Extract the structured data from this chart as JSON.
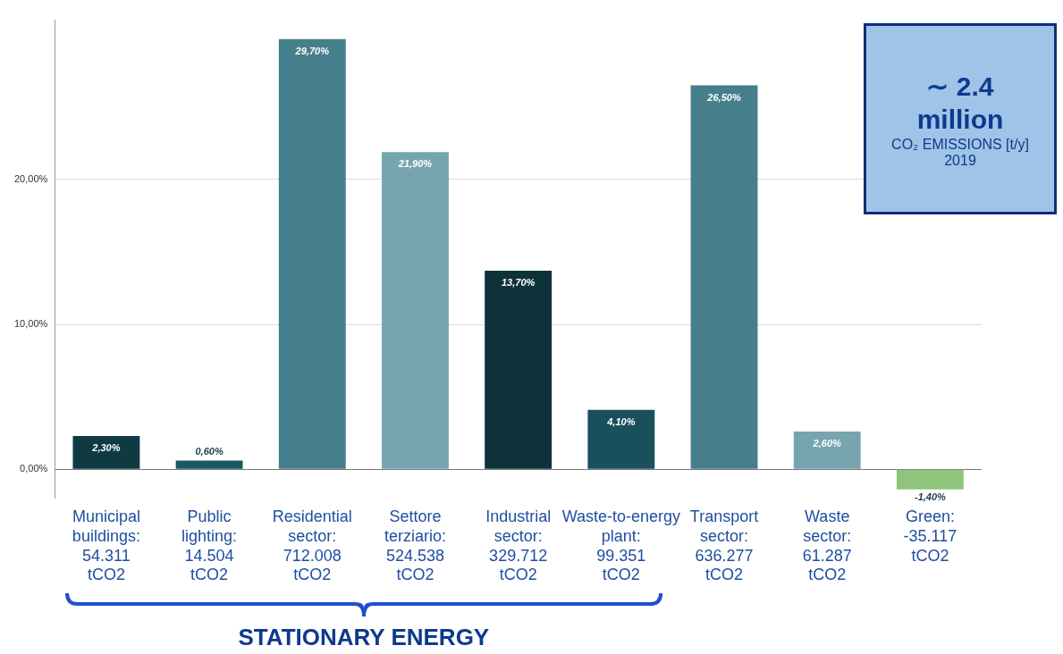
{
  "chart_data": {
    "type": "bar",
    "categories": [
      "Municipal buildings: 54.311 tCO2",
      "Public lighting: 14.504 tCO2",
      "Residential sector: 712.008 tCO2",
      "Settore terziario: 524.538 tCO2",
      "Industrial sector: 329.712 tCO2",
      "Waste-to-energy plant: 99.351 tCO2",
      "Transport sector: 636.277 tCO2",
      "Waste sector: 61.287 tCO2",
      "Green: -35.117 tCO2"
    ],
    "values": [
      2.3,
      0.6,
      29.7,
      21.9,
      13.7,
      4.1,
      26.5,
      2.6,
      -1.4
    ],
    "colors": [
      "#0f3a44",
      "#1b5866",
      "#467f8c",
      "#76a5b0",
      "#0e323a",
      "#1a4f5c",
      "#467f8c",
      "#76a5b0",
      "#8fc47c"
    ],
    "value_labels": [
      "2,30%",
      "0,60%",
      "29,70%",
      "21,90%",
      "13,70%",
      "4,10%",
      "26,50%",
      "2,60%",
      "-1,40%"
    ],
    "ylim": [
      -2,
      31
    ],
    "yticks": [
      {
        "value": 0,
        "label": "0,00%"
      },
      {
        "value": 10,
        "label": "10,00%"
      },
      {
        "value": 20,
        "label": "20,00%"
      }
    ],
    "grid": "y",
    "legend": false,
    "annotations": [
      "∼ 2.4 million",
      "CO₂ EMISSIONS [t/y]",
      "2019",
      "STATIONARY ENERGY"
    ]
  }
}
